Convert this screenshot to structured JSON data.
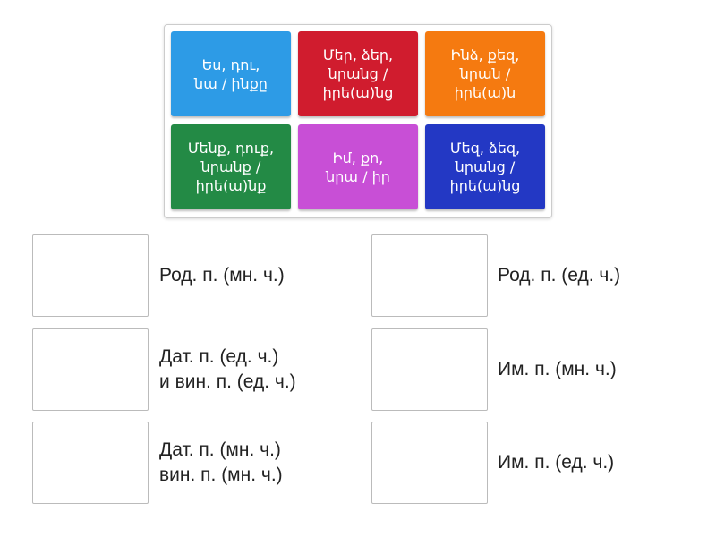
{
  "tiles": [
    {
      "text": "Ես, դու,\nնա / ինքը",
      "color": "#2d9be6"
    },
    {
      "text": "Մեր, ձեր,\nնրանց /\nիրե(ա)նց",
      "color": "#d01c2e"
    },
    {
      "text": "Ինձ, քեզ,\nնրան /\nիրե(ա)ն",
      "color": "#f57a10"
    },
    {
      "text": "Մենք, դուք,\nնրանք /\nիրե(ա)նք",
      "color": "#238a45"
    },
    {
      "text": "Իմ, քո,\nնրա / իր",
      "color": "#c84fd6"
    },
    {
      "text": "Մեզ, ձեզ,\nնրանց /\nիրե(ա)նց",
      "color": "#2338c4"
    }
  ],
  "targets": [
    {
      "label": "Род. п. (мн. ч.)"
    },
    {
      "label": "Род. п. (ед. ч.)"
    },
    {
      "label": "Дат. п. (ед. ч.)\nи вин. п. (ед. ч.)"
    },
    {
      "label": "Им. п. (мн. ч.)"
    },
    {
      "label": "Дат. п. (мн. ч.)\nвин. п. (мн. ч.)"
    },
    {
      "label": "Им. п. (ед. ч.)"
    }
  ]
}
